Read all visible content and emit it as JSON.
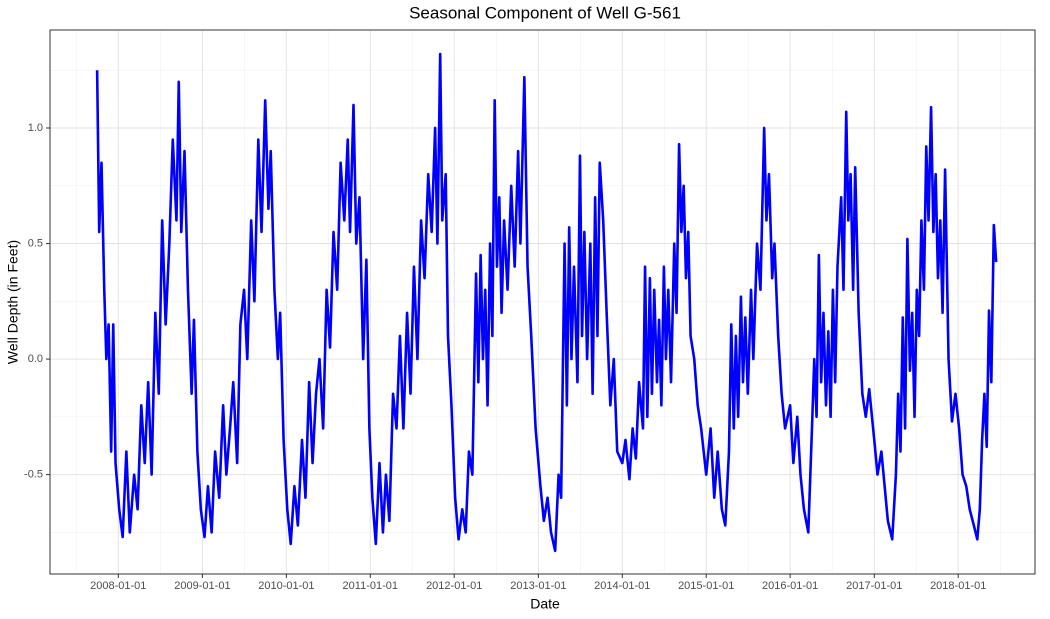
{
  "chart_data": {
    "type": "line",
    "title": "Seasonal Component of Well G-561",
    "x_label": "Date",
    "y_label": "Well Depth (in Feet)",
    "color": "#0000ff",
    "grid": true,
    "xlim": [
      "2007-03-10",
      "2018-12-01"
    ],
    "xticks": [
      "2008-01-01",
      "2009-01-01",
      "2010-01-01",
      "2011-01-01",
      "2012-01-01",
      "2013-01-01",
      "2014-01-01",
      "2015-01-01",
      "2016-01-01",
      "2017-01-01",
      "2018-01-01"
    ],
    "ylim": [
      -0.93,
      1.424
    ],
    "yticks": [
      {
        "value": -0.5,
        "label": "-0.5"
      },
      {
        "value": 0,
        "label": "0.0"
      },
      {
        "value": 0.5,
        "label": "0.5"
      },
      {
        "value": 1,
        "label": "1.0"
      }
    ],
    "x": [
      "2007-10-01",
      "2007-10-10",
      "2007-10-20",
      "2007-11-01",
      "2007-11-10",
      "2007-11-20",
      "2007-12-01",
      "2007-12-10",
      "2007-12-20",
      "2008-01-05",
      "2008-01-20",
      "2008-02-05",
      "2008-02-20",
      "2008-03-10",
      "2008-03-25",
      "2008-04-10",
      "2008-04-25",
      "2008-05-10",
      "2008-05-25",
      "2008-06-10",
      "2008-06-25",
      "2008-07-10",
      "2008-07-25",
      "2008-08-10",
      "2008-08-25",
      "2008-09-10",
      "2008-09-20",
      "2008-10-01",
      "2008-10-15",
      "2008-10-30",
      "2008-11-15",
      "2008-11-25",
      "2008-12-10",
      "2008-12-25",
      "2009-01-10",
      "2009-01-25",
      "2009-02-10",
      "2009-02-25",
      "2009-03-15",
      "2009-04-01",
      "2009-04-15",
      "2009-05-01",
      "2009-05-15",
      "2009-06-01",
      "2009-06-15",
      "2009-07-01",
      "2009-07-15",
      "2009-08-01",
      "2009-08-15",
      "2009-09-01",
      "2009-09-15",
      "2009-10-01",
      "2009-10-15",
      "2009-10-25",
      "2009-11-10",
      "2009-11-25",
      "2009-12-05",
      "2009-12-20",
      "2010-01-05",
      "2010-01-20",
      "2010-02-05",
      "2010-02-20",
      "2010-03-10",
      "2010-03-25",
      "2010-04-10",
      "2010-04-25",
      "2010-05-10",
      "2010-05-25",
      "2010-06-10",
      "2010-06-25",
      "2010-07-10",
      "2010-07-25",
      "2010-08-10",
      "2010-08-25",
      "2010-09-10",
      "2010-09-25",
      "2010-10-05",
      "2010-10-20",
      "2010-11-01",
      "2010-11-15",
      "2010-12-01",
      "2010-12-15",
      "2010-12-28",
      "2011-01-10",
      "2011-01-25",
      "2011-02-10",
      "2011-02-25",
      "2011-03-10",
      "2011-03-25",
      "2011-04-10",
      "2011-04-25",
      "2011-05-10",
      "2011-05-25",
      "2011-06-10",
      "2011-06-25",
      "2011-07-10",
      "2011-07-25",
      "2011-08-10",
      "2011-08-25",
      "2011-09-10",
      "2011-09-25",
      "2011-10-10",
      "2011-10-20",
      "2011-11-01",
      "2011-11-10",
      "2011-11-25",
      "2011-12-05",
      "2011-12-20",
      "2012-01-05",
      "2012-01-20",
      "2012-02-05",
      "2012-02-20",
      "2012-03-05",
      "2012-03-20",
      "2012-04-05",
      "2012-04-15",
      "2012-04-25",
      "2012-05-05",
      "2012-05-15",
      "2012-05-25",
      "2012-06-05",
      "2012-06-15",
      "2012-06-25",
      "2012-07-05",
      "2012-07-15",
      "2012-07-25",
      "2012-08-05",
      "2012-08-20",
      "2012-09-05",
      "2012-09-20",
      "2012-10-05",
      "2012-10-15",
      "2012-11-01",
      "2012-11-15",
      "2012-12-01",
      "2012-12-20",
      "2013-01-10",
      "2013-01-25",
      "2013-02-10",
      "2013-02-25",
      "2013-03-15",
      "2013-03-30",
      "2013-04-10",
      "2013-04-25",
      "2013-05-05",
      "2013-05-15",
      "2013-05-25",
      "2013-06-05",
      "2013-06-20",
      "2013-07-01",
      "2013-07-10",
      "2013-07-20",
      "2013-08-01",
      "2013-08-15",
      "2013-08-25",
      "2013-09-05",
      "2013-09-15",
      "2013-09-25",
      "2013-10-10",
      "2013-10-25",
      "2013-11-10",
      "2013-11-25",
      "2013-12-10",
      "2014-01-01",
      "2014-01-15",
      "2014-02-01",
      "2014-02-15",
      "2014-03-01",
      "2014-03-15",
      "2014-04-01",
      "2014-04-10",
      "2014-04-20",
      "2014-05-01",
      "2014-05-10",
      "2014-05-20",
      "2014-06-01",
      "2014-06-10",
      "2014-06-20",
      "2014-07-01",
      "2014-07-10",
      "2014-07-20",
      "2014-08-01",
      "2014-08-15",
      "2014-08-25",
      "2014-09-05",
      "2014-09-15",
      "2014-09-25",
      "2014-10-05",
      "2014-10-15",
      "2014-10-25",
      "2014-11-10",
      "2014-11-25",
      "2014-12-10",
      "2015-01-01",
      "2015-01-20",
      "2015-02-05",
      "2015-02-20",
      "2015-03-10",
      "2015-03-25",
      "2015-04-10",
      "2015-04-20",
      "2015-05-01",
      "2015-05-10",
      "2015-05-20",
      "2015-06-01",
      "2015-06-10",
      "2015-06-20",
      "2015-07-01",
      "2015-07-15",
      "2015-07-25",
      "2015-08-10",
      "2015-08-25",
      "2015-09-10",
      "2015-09-20",
      "2015-10-01",
      "2015-10-15",
      "2015-10-25",
      "2015-11-10",
      "2015-11-25",
      "2015-12-10",
      "2016-01-01",
      "2016-01-15",
      "2016-02-01",
      "2016-02-15",
      "2016-03-01",
      "2016-03-20",
      "2016-04-05",
      "2016-04-15",
      "2016-04-25",
      "2016-05-05",
      "2016-05-15",
      "2016-05-25",
      "2016-06-05",
      "2016-06-15",
      "2016-06-25",
      "2016-07-05",
      "2016-07-15",
      "2016-07-25",
      "2016-08-10",
      "2016-08-20",
      "2016-09-01",
      "2016-09-10",
      "2016-09-20",
      "2016-10-01",
      "2016-10-10",
      "2016-10-25",
      "2016-11-10",
      "2016-11-25",
      "2016-12-10",
      "2017-01-01",
      "2017-01-15",
      "2017-02-01",
      "2017-02-15",
      "2017-03-01",
      "2017-03-20",
      "2017-04-05",
      "2017-04-15",
      "2017-04-25",
      "2017-05-05",
      "2017-05-15",
      "2017-05-25",
      "2017-06-05",
      "2017-06-15",
      "2017-06-25",
      "2017-07-05",
      "2017-07-15",
      "2017-07-25",
      "2017-08-05",
      "2017-08-15",
      "2017-08-25",
      "2017-09-05",
      "2017-09-15",
      "2017-09-25",
      "2017-10-05",
      "2017-10-15",
      "2017-10-25",
      "2017-11-05",
      "2017-11-20",
      "2017-12-05",
      "2017-12-20",
      "2018-01-05",
      "2018-01-20",
      "2018-02-05",
      "2018-02-20",
      "2018-03-10",
      "2018-03-25",
      "2018-04-05",
      "2018-04-15",
      "2018-04-25",
      "2018-05-05",
      "2018-05-15",
      "2018-05-25",
      "2018-06-05",
      "2018-06-15"
    ],
    "values": [
      1.25,
      0.55,
      0.85,
      0.3,
      0,
      0.15,
      -0.4,
      0.15,
      -0.45,
      -0.65,
      -0.77,
      -0.4,
      -0.75,
      -0.5,
      -0.65,
      -0.2,
      -0.45,
      -0.1,
      -0.5,
      0.2,
      -0.15,
      0.6,
      0.15,
      0.5,
      0.95,
      0.6,
      1.2,
      0.55,
      0.9,
      0.3,
      -0.15,
      0.17,
      -0.4,
      -0.65,
      -0.77,
      -0.55,
      -0.75,
      -0.4,
      -0.6,
      -0.2,
      -0.5,
      -0.3,
      -0.1,
      -0.45,
      0.15,
      0.3,
      0,
      0.6,
      0.25,
      0.95,
      0.55,
      1.12,
      0.65,
      0.9,
      0.3,
      0,
      0.2,
      -0.35,
      -0.65,
      -0.8,
      -0.55,
      -0.72,
      -0.35,
      -0.6,
      -0.1,
      -0.45,
      -0.15,
      0,
      -0.3,
      0.3,
      0.05,
      0.55,
      0.3,
      0.85,
      0.6,
      0.95,
      0.55,
      1.1,
      0.5,
      0.7,
      0,
      0.43,
      -0.3,
      -0.6,
      -0.8,
      -0.45,
      -0.75,
      -0.5,
      -0.7,
      -0.15,
      -0.3,
      0.1,
      -0.3,
      0.2,
      -0.15,
      0.4,
      0,
      0.6,
      0.35,
      0.8,
      0.55,
      1.0,
      0.5,
      1.32,
      0.6,
      0.8,
      0.1,
      -0.2,
      -0.6,
      -0.78,
      -0.65,
      -0.75,
      -0.4,
      -0.5,
      0.37,
      -0.1,
      0.45,
      0,
      0.3,
      -0.2,
      0.5,
      0.1,
      1.12,
      0.4,
      0.7,
      0.2,
      0.6,
      0.3,
      0.75,
      0.4,
      0.9,
      0.5,
      1.22,
      0.4,
      0.1,
      -0.3,
      -0.55,
      -0.7,
      -0.6,
      -0.75,
      -0.83,
      -0.5,
      -0.6,
      0.5,
      -0.2,
      0.57,
      0,
      0.4,
      -0.1,
      0.88,
      0.1,
      0.55,
      0,
      0.5,
      -0.15,
      0.7,
      0.1,
      0.85,
      0.6,
      0.2,
      -0.2,
      0,
      -0.4,
      -0.45,
      -0.35,
      -0.52,
      -0.3,
      -0.43,
      -0.1,
      -0.3,
      0.4,
      -0.25,
      0.35,
      -0.15,
      0.3,
      -0.1,
      0.17,
      -0.2,
      0.4,
      0,
      0.3,
      -0.1,
      0.5,
      0.2,
      0.93,
      0.55,
      0.75,
      0.35,
      0.55,
      0.1,
      0,
      -0.2,
      -0.3,
      -0.5,
      -0.3,
      -0.6,
      -0.4,
      -0.65,
      -0.72,
      -0.4,
      0.15,
      -0.3,
      0.1,
      -0.25,
      0.27,
      -0.1,
      0.18,
      -0.15,
      0.3,
      0,
      0.5,
      0.3,
      1.0,
      0.6,
      0.8,
      0.35,
      0.5,
      0.1,
      -0.15,
      -0.3,
      -0.2,
      -0.45,
      -0.25,
      -0.5,
      -0.65,
      -0.75,
      -0.3,
      0,
      -0.25,
      0.45,
      -0.1,
      0.2,
      -0.2,
      0.12,
      -0.25,
      0.3,
      -0.1,
      0.4,
      0.7,
      0.3,
      1.07,
      0.6,
      0.8,
      0.3,
      0.83,
      0.2,
      -0.15,
      -0.25,
      -0.13,
      -0.35,
      -0.5,
      -0.4,
      -0.55,
      -0.7,
      -0.78,
      -0.5,
      -0.15,
      -0.4,
      0.18,
      -0.3,
      0.52,
      -0.05,
      0.2,
      -0.25,
      0.3,
      0.1,
      0.6,
      0.3,
      0.92,
      0.6,
      1.09,
      0.55,
      0.8,
      0.35,
      0.6,
      0.2,
      0.82,
      0,
      -0.27,
      -0.15,
      -0.3,
      -0.5,
      -0.55,
      -0.65,
      -0.72,
      -0.78,
      -0.65,
      -0.35,
      -0.15,
      -0.38,
      0.21,
      -0.1,
      0.58,
      0.42
    ]
  }
}
